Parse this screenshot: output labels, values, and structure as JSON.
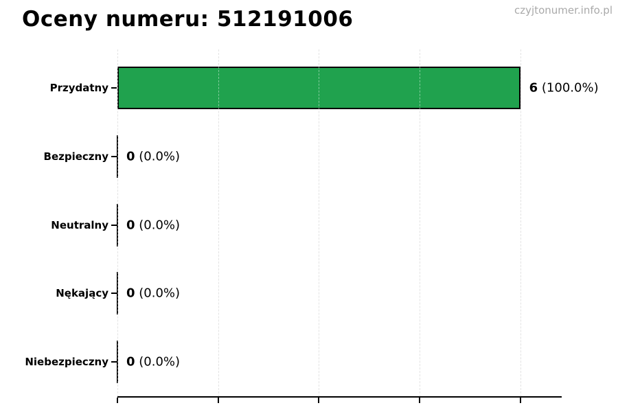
{
  "page": {
    "watermark": "czyjtonumer.info.pl"
  },
  "chart_data": {
    "type": "bar",
    "orientation": "horizontal",
    "title": "Oceny numeru: 512191006",
    "categories": [
      "Przydatny",
      "Bezpieczny",
      "Neutralny",
      "Nękający",
      "Niebezpieczny"
    ],
    "values": [
      6,
      0,
      0,
      0,
      0
    ],
    "total_votes": 6,
    "percent_labels": [
      "100.0%",
      "0.0%",
      "0.0%",
      "0.0%",
      "0.0%"
    ],
    "value_label_texts": [
      "6 (100.0%)",
      "0 (0.0%)",
      "0 (0.0%)",
      "0 (0.0%)",
      "0 (0.0%)"
    ],
    "xlabel": "",
    "ylabel": "",
    "xlim": [
      0,
      6
    ],
    "x_ticks": [
      0,
      1.5,
      3,
      4.5,
      6
    ],
    "x_tick_labels_visible": false,
    "grid": {
      "vertical": true,
      "style": "dashed",
      "color": "#cccccc"
    },
    "legend": "none",
    "colors": {
      "bar_fill": "#20a24e",
      "bar_edge": "#000000",
      "axis": "#000000",
      "title_text": "#000000",
      "category_text": "#000000",
      "value_text": "#000000",
      "watermark_text": "#a9a9a9",
      "gridline": "#cccccc",
      "background": "#ffffff"
    }
  }
}
